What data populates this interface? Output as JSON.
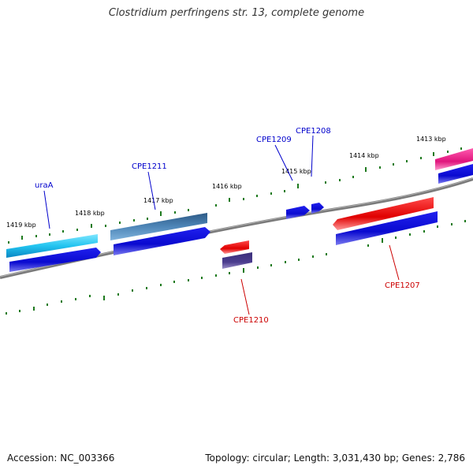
{
  "title": "Clostridium perfringens str. 13, complete genome",
  "footer": {
    "accession": "Accession: NC_003366",
    "summary": "Topology: circular; Length: 3,031,430 bp; Genes: 2,786"
  },
  "colors": {
    "backbone": "#808080",
    "ticks": "#1f7a1f",
    "forward_label": "#0000cc",
    "reverse_label": "#cc0000"
  },
  "ticks": [
    "1419 kbp",
    "1418 kbp",
    "1417 kbp",
    "1416 kbp",
    "1415 kbp",
    "1414 kbp",
    "1413 kbp"
  ],
  "genes": [
    {
      "name": "uraA",
      "strand": "forward"
    },
    {
      "name": "CPE1211",
      "strand": "forward"
    },
    {
      "name": "CPE1209",
      "strand": "forward"
    },
    {
      "name": "CPE1208",
      "strand": "forward"
    },
    {
      "name": "CPE1210",
      "strand": "reverse"
    },
    {
      "name": "CPE1207",
      "strand": "reverse"
    }
  ]
}
